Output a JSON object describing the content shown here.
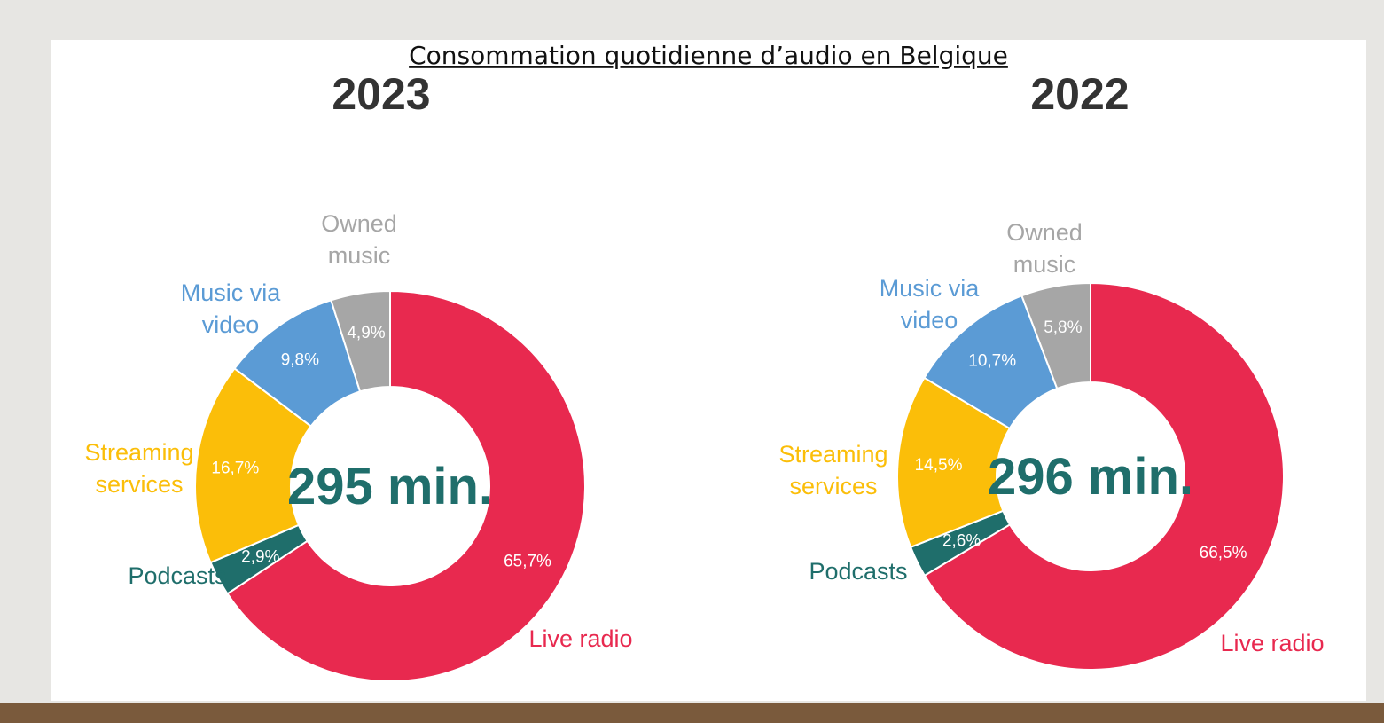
{
  "title": "Consommation quotidienne d’audio en Belgique",
  "chart_data": [
    {
      "type": "donut",
      "title": "2023",
      "center_label": "295 min.",
      "categories": [
        "Live radio",
        "Podcasts",
        "Streaming services",
        "Music via video",
        "Owned music"
      ],
      "values": [
        65.7,
        2.9,
        16.7,
        9.8,
        4.9
      ],
      "value_labels": [
        "65,7%",
        "2,9%",
        "16,7%",
        "9,8%",
        "4,9%"
      ],
      "colors": [
        "#e8294f",
        "#1f6e6b",
        "#fbbe09",
        "#5b9bd5",
        "#a6a6a6"
      ]
    },
    {
      "type": "donut",
      "title": "2022",
      "center_label": "296 min.",
      "categories": [
        "Live radio",
        "Podcasts",
        "Streaming services",
        "Music via video",
        "Owned music"
      ],
      "values": [
        66.5,
        2.6,
        14.5,
        10.7,
        5.8
      ],
      "value_labels": [
        "66,5%",
        "2,6%",
        "14,5%",
        "10,7%",
        "5,8%"
      ],
      "colors": [
        "#e8294f",
        "#1f6e6b",
        "#fbbe09",
        "#5b9bd5",
        "#a6a6a6"
      ]
    }
  ]
}
